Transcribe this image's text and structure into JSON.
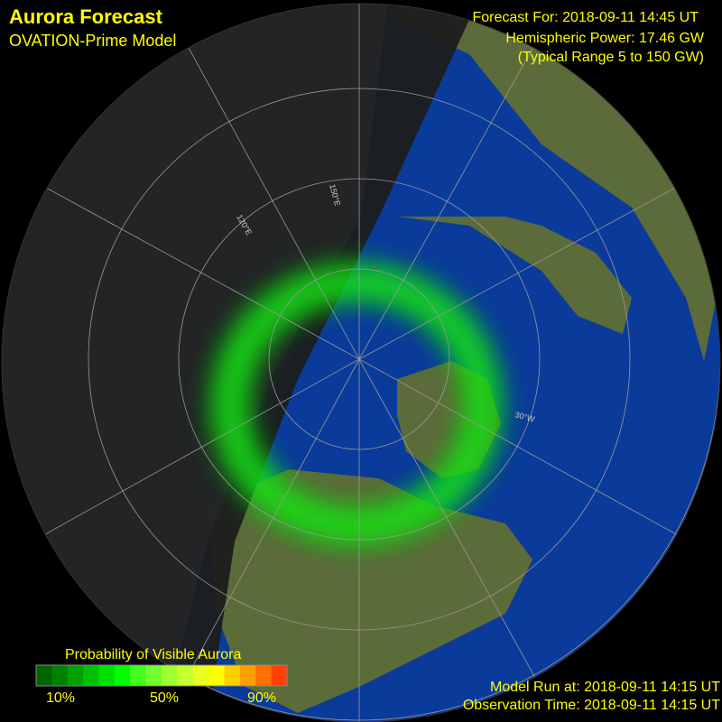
{
  "header": {
    "title": "Aurora Forecast",
    "subtitle": "OVATION-Prime Model"
  },
  "forecast": {
    "time": "Forecast For: 2018-09-11 14:45 UT",
    "power": "Hemispheric Power: 17.46 GW",
    "range": "(Typical Range 5 to 150 GW)"
  },
  "map": {
    "grid_labels": [
      "150°E",
      "120°E",
      "30°W"
    ]
  },
  "legend": {
    "title": "Probability of Visible Aurora",
    "ticks": [
      "10%",
      "50%",
      "90%"
    ],
    "colors": [
      "#006400",
      "#008000",
      "#00a000",
      "#00c000",
      "#00e000",
      "#00ff00",
      "#40ff20",
      "#70ff30",
      "#a0ff30",
      "#c8ff30",
      "#e8ff20",
      "#ffff00",
      "#ffd000",
      "#ffa000",
      "#ff7000",
      "#ff4000"
    ]
  },
  "footer": {
    "model_run": "Model Run at: 2018-09-11 14:15 UT",
    "observation": "Observation Time: 2018-09-11 14:15 UT"
  }
}
